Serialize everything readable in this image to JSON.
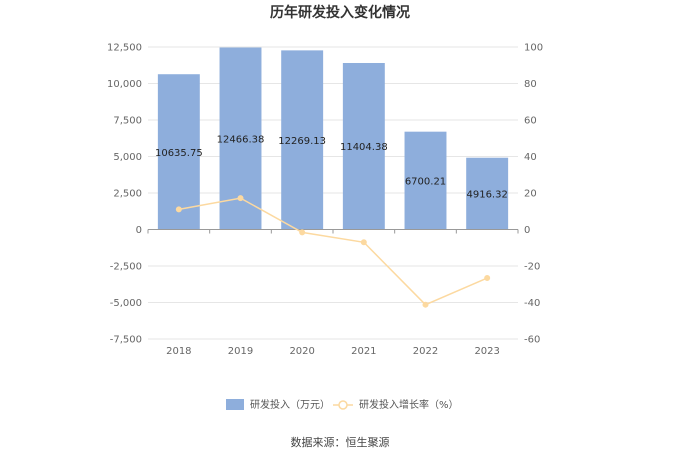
{
  "chart_data": {
    "type": "bar",
    "title": "历年研发投入变化情况",
    "categories": [
      "2018",
      "2019",
      "2020",
      "2021",
      "2022",
      "2023"
    ],
    "series": [
      {
        "name": "研发投入（万元）",
        "type": "bar",
        "axis": "left",
        "values": [
          10635.75,
          12466.38,
          12269.13,
          11404.38,
          6700.21,
          4916.32
        ],
        "labels": [
          "10635.75",
          "12466.38",
          "12269.13",
          "11404.38",
          "6700.21",
          "4916.32"
        ]
      },
      {
        "name": "研发投入增长率（%）",
        "type": "line",
        "axis": "right",
        "values": [
          11.0,
          17.2,
          -1.6,
          -7.0,
          -41.2,
          -26.6
        ]
      }
    ],
    "y_left": {
      "ylim": [
        -7500,
        12500
      ],
      "ticks": [
        12500,
        10000,
        7500,
        5000,
        2500,
        0,
        -2500,
        -5000,
        -7500
      ],
      "tick_labels": [
        "12,500",
        "10,000",
        "7,500",
        "5,000",
        "2,500",
        "0",
        "-2,500",
        "-5,000",
        "-7,500"
      ]
    },
    "y_right": {
      "ylim": [
        -60,
        100
      ],
      "ticks": [
        100,
        80,
        60,
        40,
        20,
        0,
        -20,
        -40,
        -60
      ],
      "tick_labels": [
        "100",
        "80",
        "60",
        "40",
        "20",
        "0",
        "-20",
        "-40",
        "-60"
      ]
    },
    "grid": true,
    "legend_position": "bottom",
    "colors": {
      "bar": "#8eaedc",
      "line": "#fcd9a0",
      "grid": "#e6e6e6",
      "axis": "#999999"
    }
  },
  "source": "数据来源：恒生聚源"
}
